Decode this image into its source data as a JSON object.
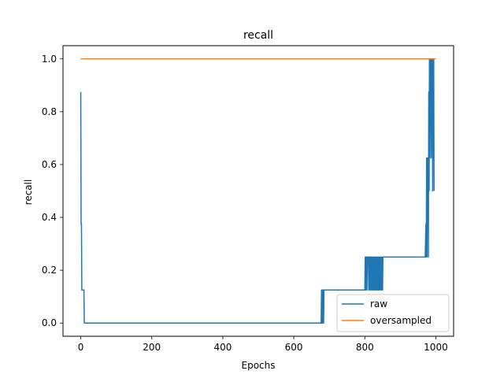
{
  "chart_data": {
    "type": "line",
    "title": "recall",
    "xlabel": "Epochs",
    "ylabel": "recall",
    "xlim": [
      -50,
      1050
    ],
    "ylim": [
      -0.05,
      1.05
    ],
    "xticks": [
      0,
      200,
      400,
      600,
      800,
      1000
    ],
    "yticks": [
      0.0,
      0.2,
      0.4,
      0.6,
      0.8,
      1.0
    ],
    "xtick_labels": [
      "0",
      "200",
      "400",
      "600",
      "800",
      "1000"
    ],
    "ytick_labels": [
      "0.0",
      "0.2",
      "0.4",
      "0.6",
      "0.8",
      "1.0"
    ],
    "grid": false,
    "legend_position": "lower-right",
    "series": [
      {
        "name": "raw",
        "color": "#1f77b4",
        "x": [
          0,
          1,
          2,
          3,
          4,
          5,
          6,
          7,
          8,
          9,
          10,
          677,
          678,
          679,
          680,
          681,
          682,
          683,
          684,
          685,
          686,
          687,
          800,
          801,
          802,
          803,
          804,
          805,
          806,
          807,
          810,
          811,
          812,
          813,
          814,
          815,
          816,
          817,
          818,
          819,
          820,
          822,
          823,
          824,
          825,
          826,
          827,
          828,
          830,
          831,
          832,
          833,
          834,
          836,
          837,
          838,
          839,
          840,
          841,
          842,
          844,
          845,
          846,
          847,
          848,
          850,
          851,
          852,
          853,
          854,
          970,
          972,
          973,
          974,
          975,
          976,
          977,
          978,
          979,
          980,
          981,
          982,
          983,
          984,
          985,
          986,
          987,
          988,
          989,
          990,
          991,
          992,
          993,
          994,
          995
        ],
        "y": [
          0.875,
          0.375,
          0.375,
          0.125,
          0.125,
          0.125,
          0.125,
          0.125,
          0.125,
          0.125,
          0.0,
          0.0,
          0.125,
          0.0,
          0.125,
          0.0,
          0.125,
          0.125,
          0.0,
          0.125,
          0.125,
          0.125,
          0.125,
          0.25,
          0.125,
          0.25,
          0.25,
          0.125,
          0.125,
          0.25,
          0.25,
          0.125,
          0.25,
          0.125,
          0.25,
          0.125,
          0.25,
          0.25,
          0.125,
          0.25,
          0.125,
          0.25,
          0.125,
          0.25,
          0.125,
          0.25,
          0.125,
          0.25,
          0.125,
          0.25,
          0.125,
          0.25,
          0.125,
          0.25,
          0.125,
          0.25,
          0.125,
          0.25,
          0.125,
          0.25,
          0.125,
          0.25,
          0.25,
          0.125,
          0.25,
          0.125,
          0.25,
          0.25,
          0.25,
          0.25,
          0.25,
          0.375,
          0.25,
          0.625,
          0.25,
          0.625,
          0.375,
          0.625,
          0.25,
          0.875,
          0.5,
          1.0,
          0.625,
          1.0,
          0.875,
          1.0,
          0.625,
          1.0,
          0.75,
          1.0,
          0.5,
          1.0,
          0.625,
          1.0,
          0.5
        ]
      },
      {
        "name": "oversampled",
        "color": "#ff7f0e",
        "x": [
          0,
          1000
        ],
        "y": [
          1.0,
          1.0
        ]
      }
    ]
  }
}
